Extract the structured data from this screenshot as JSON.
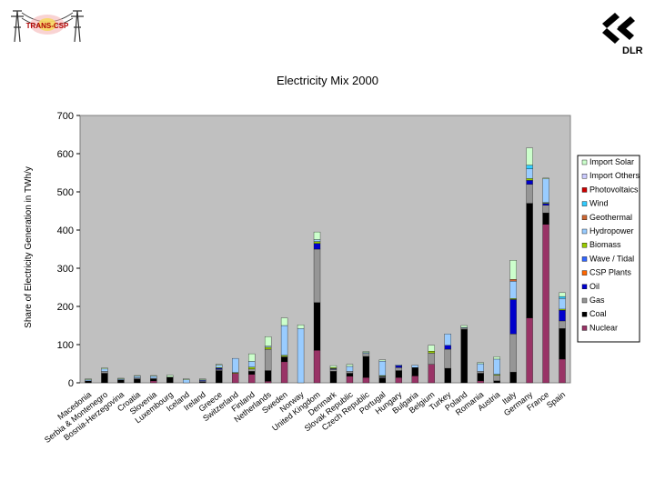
{
  "logos": {
    "left_text": "TRANS-CSP",
    "right_text": "DLR"
  },
  "chart_data": {
    "type": "bar",
    "stacked": true,
    "title": "Electricity Mix 2000",
    "ylabel": "Share of Electricity Generation in TWh/y",
    "xlabel": "",
    "ylim": [
      0,
      700
    ],
    "yticks": [
      0,
      100,
      200,
      300,
      400,
      500,
      600,
      700
    ],
    "grid": false,
    "legend_position": "right",
    "plot_background": "#c0c0c0",
    "categories": [
      "Macedonia",
      "Serbia & Montenegro",
      "Bosnia-Herzegovina",
      "Croatia",
      "Slovenia",
      "Luxembourg",
      "Iceland",
      "Ireland",
      "Greece",
      "Switzerland",
      "Finland",
      "Netherlands",
      "Sweden",
      "Norway",
      "United Kingdom",
      "Denmark",
      "Slovak Republic",
      "Czech Republic",
      "Portugal",
      "Hungary",
      "Bulgaria",
      "Belgium",
      "Turkey",
      "Poland",
      "Romania",
      "Austria",
      "Italy",
      "Germany",
      "France",
      "Spain"
    ],
    "series": [
      {
        "name": "Nuclear",
        "color": "#993366",
        "values": [
          0,
          0,
          0,
          0,
          5,
          0,
          0,
          0,
          0,
          25,
          22,
          4,
          55,
          0,
          85,
          0,
          17,
          14,
          0,
          14,
          18,
          48,
          0,
          0,
          5,
          0,
          0,
          170,
          415,
          62
        ]
      },
      {
        "name": "Coal",
        "color": "#000000",
        "values": [
          5,
          25,
          8,
          10,
          5,
          15,
          0,
          2,
          32,
          0,
          8,
          28,
          12,
          0,
          125,
          30,
          8,
          55,
          13,
          18,
          22,
          0,
          38,
          140,
          20,
          5,
          28,
          300,
          30,
          80
        ]
      },
      {
        "name": "Gas",
        "color": "#969696",
        "values": [
          0,
          5,
          0,
          3,
          2,
          0,
          0,
          2,
          3,
          0,
          6,
          56,
          2,
          0,
          140,
          5,
          5,
          8,
          3,
          8,
          0,
          30,
          50,
          3,
          5,
          15,
          100,
          50,
          20,
          20
        ]
      },
      {
        "name": "Oil",
        "color": "#0000cc",
        "values": [
          0,
          0,
          0,
          0,
          0,
          0,
          0,
          2,
          3,
          0,
          0,
          0,
          0,
          0,
          15,
          2,
          0,
          0,
          1,
          5,
          0,
          0,
          10,
          0,
          0,
          0,
          90,
          10,
          5,
          28
        ]
      },
      {
        "name": "CSP Plants",
        "color": "#ff6600",
        "values": [
          0,
          0,
          0,
          0,
          0,
          0,
          0,
          0,
          0,
          0,
          0,
          0,
          0,
          0,
          0,
          0,
          0,
          0,
          0,
          0,
          0,
          0,
          0,
          0,
          0,
          0,
          0,
          0,
          0,
          0
        ]
      },
      {
        "name": "Wave / Tidal",
        "color": "#3366ff",
        "values": [
          0,
          0,
          0,
          0,
          0,
          0,
          0,
          0,
          0,
          0,
          0,
          0,
          0,
          0,
          0,
          0,
          0,
          0,
          0,
          0,
          0,
          0,
          0,
          0,
          0,
          0,
          0,
          0,
          0,
          0
        ]
      },
      {
        "name": "Biomass",
        "color": "#99cc00",
        "values": [
          0,
          0,
          0,
          0,
          0,
          0,
          0,
          0,
          2,
          2,
          5,
          5,
          3,
          0,
          5,
          3,
          0,
          0,
          2,
          0,
          0,
          5,
          0,
          0,
          0,
          2,
          3,
          5,
          2,
          3
        ]
      },
      {
        "name": "Hydropower",
        "color": "#99ccff",
        "values": [
          3,
          6,
          2,
          4,
          5,
          0,
          8,
          2,
          6,
          37,
          15,
          3,
          78,
          142,
          5,
          0,
          13,
          2,
          38,
          2,
          6,
          0,
          30,
          2,
          20,
          40,
          45,
          25,
          62,
          28
        ]
      },
      {
        "name": "Geothermal",
        "color": "#cc6633",
        "values": [
          0,
          0,
          0,
          0,
          0,
          0,
          0,
          0,
          0,
          0,
          0,
          0,
          0,
          0,
          0,
          0,
          0,
          0,
          0,
          0,
          0,
          0,
          0,
          0,
          0,
          0,
          5,
          0,
          0,
          0
        ]
      },
      {
        "name": "Wind",
        "color": "#33ccff",
        "values": [
          0,
          0,
          0,
          0,
          0,
          0,
          0,
          0,
          0,
          0,
          0,
          0,
          0,
          0,
          0,
          0,
          0,
          0,
          0,
          0,
          0,
          0,
          0,
          0,
          0,
          0,
          0,
          10,
          0,
          5
        ]
      },
      {
        "name": "Photovoltaics",
        "color": "#cc0000",
        "values": [
          0,
          0,
          0,
          0,
          0,
          0,
          0,
          0,
          0,
          0,
          0,
          0,
          0,
          0,
          0,
          0,
          0,
          0,
          0,
          0,
          0,
          0,
          0,
          0,
          0,
          0,
          0,
          0,
          0,
          0
        ]
      },
      {
        "name": "Import Others",
        "color": "#ccccff",
        "values": [
          0,
          0,
          0,
          0,
          0,
          0,
          0,
          0,
          0,
          0,
          0,
          0,
          0,
          0,
          0,
          0,
          0,
          0,
          0,
          0,
          0,
          0,
          0,
          0,
          0,
          0,
          0,
          0,
          0,
          0
        ]
      },
      {
        "name": "Import Solar",
        "color": "#ccffcc",
        "values": [
          2,
          3,
          2,
          2,
          2,
          5,
          2,
          2,
          2,
          0,
          20,
          25,
          20,
          10,
          20,
          5,
          5,
          3,
          3,
          0,
          0,
          15,
          0,
          5,
          3,
          6,
          50,
          45,
          2,
          10
        ]
      }
    ]
  }
}
